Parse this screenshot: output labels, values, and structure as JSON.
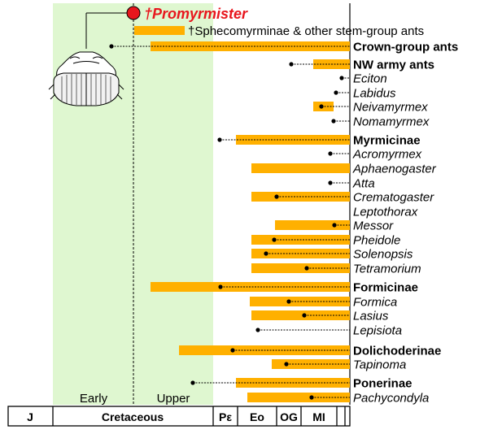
{
  "colors": {
    "cretaceous_bg": "#dff7d0",
    "bar": "#ffb000",
    "fossil_red": "#e8161d",
    "line": "#000000"
  },
  "header": {
    "fossil_label": "†Promyrmister",
    "stem_label": "†Sphecomyrminae & other stem-group ants"
  },
  "epochs": {
    "early": "Early",
    "upper": "Upper"
  },
  "timescale": [
    "J",
    "Cretaceous",
    "Pε",
    "Eo",
    "OG",
    "MI"
  ],
  "taxa": [
    {
      "label": "Crown-group ants",
      "style": "bold"
    },
    {
      "label": "NW army ants",
      "style": "bold"
    },
    {
      "label": "Eciton",
      "style": "italic"
    },
    {
      "label": "Labidus",
      "style": "italic"
    },
    {
      "label": "Neivamyrmex",
      "style": "italic"
    },
    {
      "label": "Nomamyrmex",
      "style": "italic"
    },
    {
      "label": "Myrmicinae",
      "style": "bold"
    },
    {
      "label": "Acromyrmex",
      "style": "italic"
    },
    {
      "label": "Aphaenogaster",
      "style": "italic"
    },
    {
      "label": "Atta",
      "style": "italic"
    },
    {
      "label": "Crematogaster",
      "style": "italic"
    },
    {
      "label": "Leptothorax",
      "style": "italic"
    },
    {
      "label": "Messor",
      "style": "italic"
    },
    {
      "label": "Pheidole",
      "style": "italic"
    },
    {
      "label": "Solenopsis",
      "style": "italic"
    },
    {
      "label": "Tetramorium",
      "style": "italic"
    },
    {
      "label": "Formicinae",
      "style": "bold"
    },
    {
      "label": "Formica",
      "style": "italic"
    },
    {
      "label": "Lasius",
      "style": "italic"
    },
    {
      "label": "Lepisiota",
      "style": "italic"
    },
    {
      "label": "Dolichoderinae",
      "style": "bold"
    },
    {
      "label": "Tapinoma",
      "style": "italic"
    },
    {
      "label": "Ponerinae",
      "style": "bold"
    },
    {
      "label": "Pachycondyla",
      "style": "italic"
    }
  ],
  "icons": [
    "beetle-fossil-icon"
  ]
}
